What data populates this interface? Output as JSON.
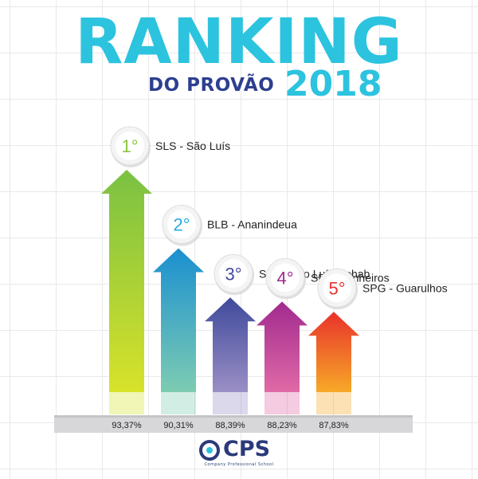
{
  "header": {
    "title": "RANKING",
    "subtitle": "DO PROVÃO",
    "year": "2018"
  },
  "logo": {
    "name": "CPS",
    "tagline": "Company Professional School"
  },
  "chart_data": {
    "type": "bar",
    "title": "RANKING DO PROVÃO 2018",
    "categories": [
      "SLS - São Luís",
      "BLB - Ananindeua",
      "SLB - São Luís Cohab",
      "SPP - Pinheiros",
      "SPG - Guarulhos"
    ],
    "ranks": [
      "1°",
      "2°",
      "3°",
      "4°",
      "5°"
    ],
    "values": [
      93.37,
      90.31,
      88.39,
      88.23,
      87.83
    ],
    "value_labels": [
      "93,37%",
      "90,31%",
      "88,39%",
      "88,23%",
      "87,83%"
    ],
    "colors_top": [
      "#7ac143",
      "#1a8fd0",
      "#3f4a9b",
      "#a12a8f",
      "#e8322b"
    ],
    "colors_bottom": [
      "#d8e22a",
      "#7dccb2",
      "#9b8fc6",
      "#e06aa6",
      "#f7a928"
    ],
    "rank_colors": [
      "#8dc63f",
      "#29abe2",
      "#3f4a9b",
      "#a12a8f",
      "#e8322b"
    ],
    "grid": true
  }
}
